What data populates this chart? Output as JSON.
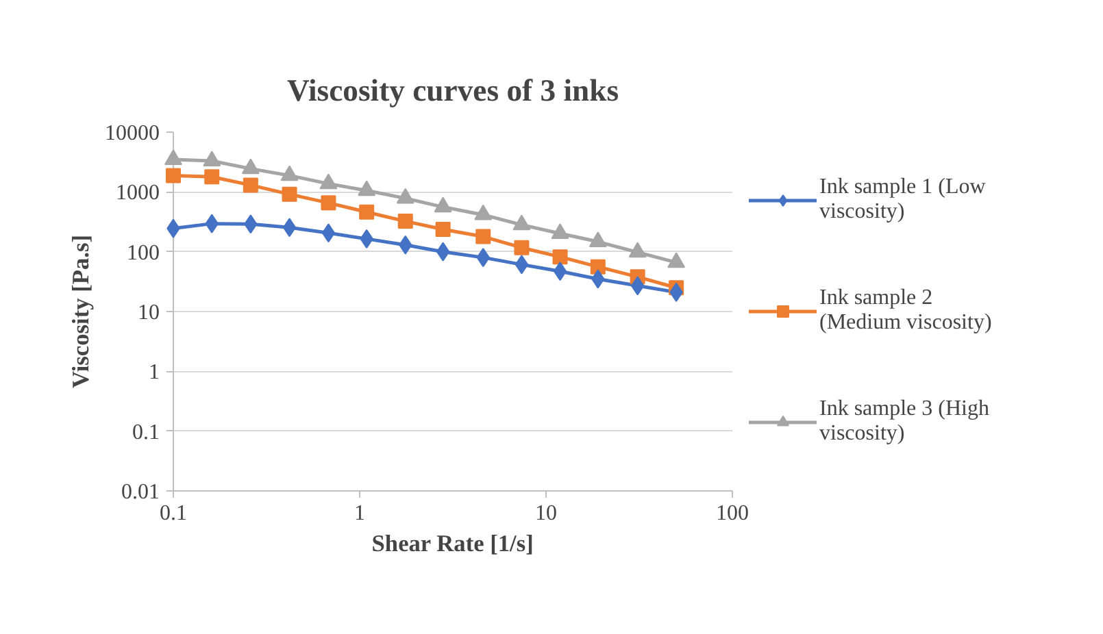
{
  "chart_data": {
    "type": "line",
    "title": "Viscosity curves of 3 inks",
    "xlabel": "Shear Rate [1/s]",
    "ylabel": "Viscosity [Pa.s]",
    "log": "xy",
    "xlim": [
      0.1,
      100
    ],
    "xticks": [
      0.1,
      1,
      10,
      100
    ],
    "ylim": [
      0.01,
      10000
    ],
    "yticks": [
      0.01,
      0.1,
      1,
      10,
      100,
      1000,
      10000
    ],
    "grid": "y",
    "legend": "right",
    "x": [
      0.1,
      0.161,
      0.26,
      0.42,
      0.68,
      1.09,
      1.76,
      2.8,
      4.6,
      7.4,
      11.9,
      19,
      31,
      50
    ],
    "series": [
      {
        "name": "Ink sample 1 (Low viscosity)",
        "color": "#4472c4",
        "marker": "diamond",
        "values": [
          245,
          295,
          290,
          254,
          206,
          164,
          130,
          100,
          80,
          61,
          47,
          35,
          27,
          21
        ]
      },
      {
        "name": "Ink sample 2 (Medium viscosity)",
        "color": "#ed7d31",
        "marker": "square",
        "values": [
          1880,
          1790,
          1300,
          916,
          656,
          461,
          324,
          237,
          179,
          117,
          82,
          56,
          38,
          25
        ]
      },
      {
        "name": "Ink sample 3 (High viscosity)",
        "color": "#a5a5a5",
        "marker": "triangle",
        "values": [
          3480,
          3300,
          2450,
          1880,
          1370,
          1055,
          782,
          560,
          415,
          282,
          202,
          147,
          98,
          66
        ]
      }
    ]
  }
}
